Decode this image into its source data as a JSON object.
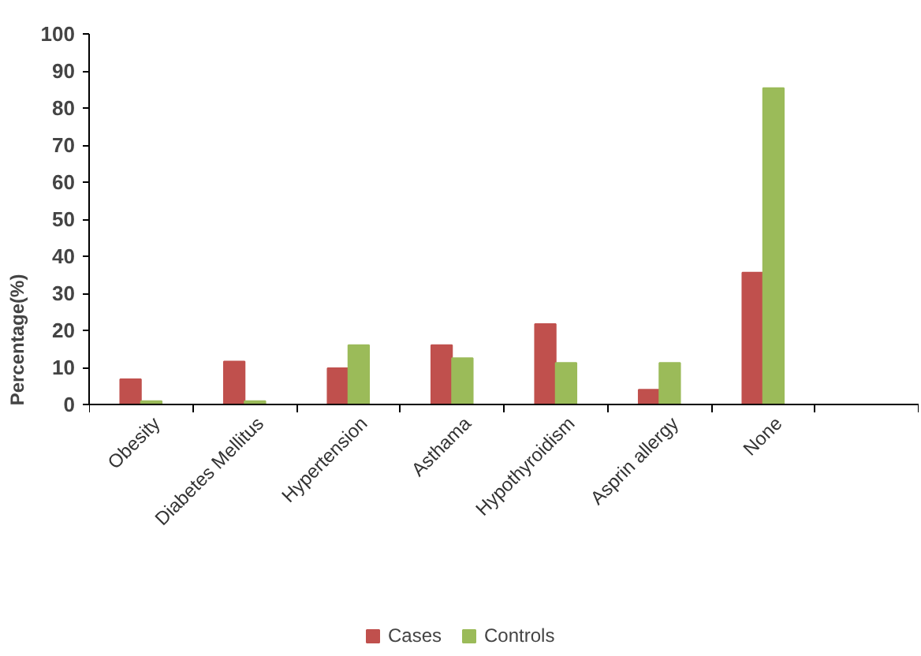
{
  "chart_data": {
    "type": "bar",
    "ylabel": "Percentage(%)",
    "categories": [
      "Obesity",
      "Diabetes Mellitus",
      "Hypertension",
      "Asthama",
      "Hypothyroidism",
      "Asprin allergy",
      "None",
      null
    ],
    "series": [
      {
        "name": "Cases",
        "color": "#c0504d",
        "values": [
          6.8,
          11.6,
          9.8,
          16,
          21.7,
          4,
          35.6,
          null
        ]
      },
      {
        "name": "Controls",
        "color": "#9bbb59",
        "values": [
          0.9,
          0.9,
          16,
          12.5,
          11.2,
          11.2,
          85.4,
          null
        ]
      }
    ],
    "ylim": [
      0,
      100
    ],
    "yticks": [
      0,
      10,
      20,
      30,
      40,
      50,
      60,
      70,
      80,
      90,
      100
    ],
    "grid": false,
    "legend": "bottom"
  }
}
